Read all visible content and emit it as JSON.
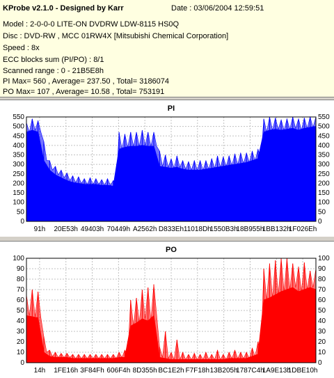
{
  "info": {
    "app_title": "KProbe v2.1.0 - Designed by Karr",
    "date": "Date : 03/06/2004 12:59:51",
    "model": "Model : 2-0-0-0 LITE-ON DVDRW LDW-8115   HS0Q",
    "disc": "Disc : DVD-RW , MCC 01RW4X  [Mitsubishi Chemical Corporation]",
    "speed": "Speed : 8x",
    "ecc": "ECC blocks sum (PI/PO) : 8/1",
    "scanned": "Scanned range : 0 - 21B5E8h",
    "pi_stats": "PI Max= 560 , Average= 237.50 , Total= 3186074",
    "po_stats": "PO Max= 107 , Average= 10.58 , Total= 753191"
  },
  "chart_data": [
    {
      "type": "area",
      "title": "PI",
      "color": "#0000ff",
      "ylim": [
        0,
        550
      ],
      "yticks": [
        0,
        50,
        100,
        150,
        200,
        250,
        300,
        350,
        400,
        450,
        500,
        550
      ],
      "xtick_labels": [
        "91h",
        "20E53h",
        "49403h",
        "70449h",
        "A2562h",
        "D833Eh",
        "11018Dh",
        "1550B3h",
        "18B955h",
        "1BB132h",
        "1F026Eh"
      ],
      "grid": true,
      "series": [
        {
          "x": [
            0,
            2,
            4,
            6,
            8,
            10,
            12,
            14,
            16,
            18,
            20,
            22,
            24,
            26,
            28,
            30,
            32,
            34,
            36,
            38,
            40,
            42,
            44,
            46,
            48,
            50,
            52,
            54,
            56,
            58,
            60,
            62,
            64,
            66,
            68,
            70,
            72,
            74,
            76,
            78,
            80,
            82,
            84,
            86,
            88,
            90,
            92,
            94,
            96,
            98,
            100
          ],
          "values": [
            470,
            480,
            470,
            320,
            270,
            245,
            230,
            215,
            205,
            200,
            195,
            195,
            195,
            190,
            190,
            185,
            380,
            390,
            395,
            395,
            400,
            395,
            395,
            290,
            285,
            280,
            285,
            275,
            270,
            270,
            270,
            275,
            280,
            285,
            290,
            295,
            300,
            305,
            310,
            320,
            330,
            470,
            480,
            485,
            480,
            485,
            490,
            480,
            490,
            495,
            500
          ],
          "max_values": [
            520,
            540,
            530,
            420,
            320,
            290,
            270,
            255,
            240,
            235,
            225,
            230,
            225,
            220,
            225,
            215,
            470,
            460,
            470,
            470,
            480,
            470,
            470,
            370,
            350,
            330,
            345,
            320,
            315,
            320,
            320,
            320,
            330,
            345,
            340,
            345,
            355,
            360,
            360,
            370,
            380,
            540,
            550,
            545,
            535,
            540,
            550,
            540,
            545,
            550,
            560
          ]
        }
      ]
    },
    {
      "type": "area",
      "title": "PO",
      "color": "#ff0000",
      "ylim": [
        0,
        100
      ],
      "yticks": [
        0,
        10,
        20,
        30,
        40,
        50,
        60,
        70,
        80,
        90,
        100
      ],
      "xtick_labels": [
        "14h",
        "1FE16h",
        "3F84Fh",
        "606F4h",
        "8D355h",
        "BC1E2h",
        "F7F18h",
        "13B205h",
        "1787C4h",
        "1A9E13h",
        "1DBE10h"
      ],
      "grid": true,
      "series": [
        {
          "x": [
            0,
            2,
            4,
            6,
            8,
            10,
            12,
            14,
            16,
            18,
            20,
            22,
            24,
            26,
            28,
            30,
            32,
            34,
            36,
            38,
            40,
            42,
            44,
            46,
            48,
            50,
            52,
            54,
            56,
            58,
            60,
            62,
            64,
            66,
            68,
            70,
            72,
            74,
            76,
            78,
            80,
            82,
            84,
            86,
            88,
            90,
            92,
            94,
            96,
            98,
            100
          ],
          "values": [
            45,
            44,
            43,
            10,
            6,
            5,
            5,
            5,
            4,
            4,
            4,
            4,
            4,
            4,
            4,
            4,
            5,
            5,
            35,
            38,
            42,
            40,
            45,
            5,
            4,
            3,
            3,
            3,
            3,
            3,
            3,
            3,
            3,
            3,
            3,
            4,
            4,
            4,
            4,
            6,
            8,
            60,
            62,
            65,
            68,
            70,
            72,
            68,
            70,
            72,
            70
          ],
          "max_values": [
            65,
            70,
            68,
            25,
            12,
            10,
            9,
            9,
            8,
            8,
            8,
            8,
            8,
            8,
            8,
            8,
            10,
            12,
            60,
            62,
            70,
            72,
            75,
            15,
            30,
            10,
            22,
            10,
            8,
            9,
            8,
            10,
            8,
            12,
            8,
            10,
            12,
            10,
            10,
            14,
            20,
            90,
            95,
            98,
            107,
            100,
            95,
            92,
            96,
            88,
            90
          ]
        }
      ]
    }
  ]
}
